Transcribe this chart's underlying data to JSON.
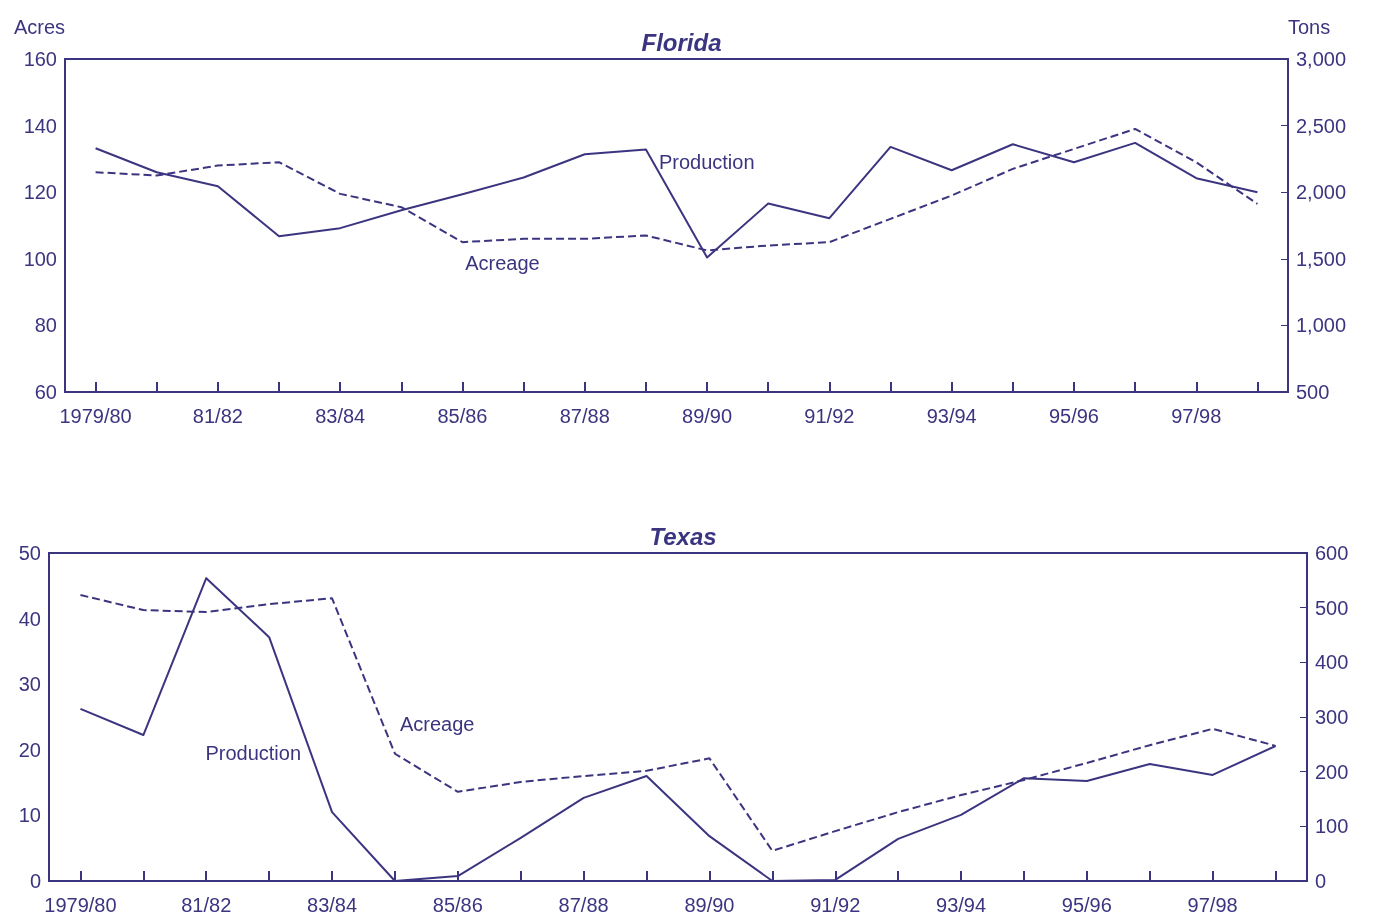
{
  "chart_data": [
    {
      "type": "line",
      "title": "Florida",
      "ylabel": "Acres",
      "y2label": "Tons",
      "legend": false,
      "marker": "none",
      "grid": false,
      "categories": [
        "1979/80",
        null,
        "81/82",
        null,
        "83/84",
        null,
        "85/86",
        null,
        "87/88",
        null,
        "89/90",
        null,
        "91/92",
        null,
        "93/94",
        null,
        "95/96",
        null,
        "97/98",
        null
      ],
      "ylim": [
        60,
        160
      ],
      "yticks": [
        60,
        80,
        100,
        120,
        140,
        160
      ],
      "y2lim": [
        500,
        3000
      ],
      "y2ticks": [
        500,
        {
          "value": 1000,
          "label": "1,000"
        },
        {
          "value": 1500,
          "label": "1,500"
        },
        {
          "value": 2000,
          "label": "2,000"
        },
        {
          "value": 2500,
          "label": "2,500"
        },
        {
          "value": 3000,
          "label": "3,000"
        }
      ],
      "series": [
        {
          "name": "Acreage",
          "color": "#3b3580",
          "line_style": "dashed",
          "values": [
            126,
            125,
            128,
            129,
            119.5,
            115.5,
            105,
            106,
            106,
            107,
            102.5,
            104,
            105,
            112,
            119,
            127,
            133,
            139,
            129,
            116.5
          ]
        },
        {
          "name": "Production",
          "color": "#3b3580",
          "line_style": "solid",
          "axis": "y2",
          "values": [
            2330,
            2150,
            2045,
            1670,
            1730,
            1865,
            1985,
            2110,
            2285,
            2320,
            1510,
            1915,
            1805,
            2340,
            2165,
            2360,
            2225,
            2370,
            2105,
            2000
          ]
        }
      ]
    },
    {
      "type": "line",
      "title": "Texas",
      "legend": false,
      "marker": "none",
      "grid": false,
      "categories": [
        "1979/80",
        null,
        "81/82",
        null,
        "83/84",
        null,
        "85/86",
        null,
        "87/88",
        null,
        "89/90",
        null,
        "91/92",
        null,
        "93/94",
        null,
        "95/96",
        null,
        "97/98",
        null
      ],
      "ylim": [
        0,
        50
      ],
      "yticks": [
        0,
        10,
        20,
        30,
        40,
        50
      ],
      "y2lim": [
        0,
        600
      ],
      "y2ticks": [
        0,
        100,
        200,
        300,
        400,
        500,
        600
      ],
      "series": [
        {
          "name": "Acreage",
          "color": "#3b3580",
          "line_style": "dashed",
          "values": [
            43.6,
            41.3,
            41,
            42.2,
            43.1,
            19.4,
            13.6,
            15.1,
            16,
            16.8,
            18.7,
            4.6,
            7.6,
            10.5,
            13.1,
            15.4,
            18,
            20.7,
            23.2,
            20.6
          ]
        },
        {
          "name": "Production",
          "color": "#3b3580",
          "line_style": "solid",
          "axis": "y2",
          "values": [
            315,
            267,
            554,
            446,
            126,
            0,
            9,
            79,
            152,
            192,
            82,
            0,
            2,
            77,
            121,
            188,
            183,
            214,
            194,
            247
          ]
        }
      ]
    }
  ]
}
